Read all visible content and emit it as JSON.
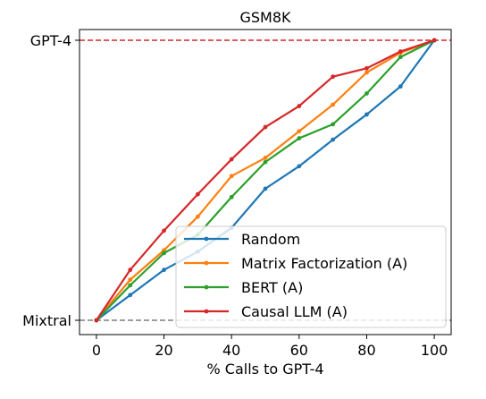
{
  "chart_data": {
    "type": "line",
    "title": "GSM8K",
    "xlabel": "% Calls to GPT-4",
    "ylabel": "",
    "xlim": [
      -5,
      105
    ],
    "ylim": [
      0,
      1
    ],
    "x_ticks": [
      "0",
      "20",
      "40",
      "60",
      "80",
      "100"
    ],
    "x_tick_values": [
      0,
      20,
      40,
      60,
      80,
      100
    ],
    "y_tick_labels": [
      "Mixtral",
      "GPT-4"
    ],
    "y_tick_values": [
      0,
      1
    ],
    "reference_lines": [
      {
        "y": 1,
        "color": "#d62728",
        "style": "dashed"
      },
      {
        "y": 0,
        "color": "#7f7f7f",
        "style": "dashed"
      }
    ],
    "grid": false,
    "legend_position": "lower-right",
    "x": [
      0,
      10,
      20,
      30,
      40,
      50,
      60,
      70,
      80,
      90,
      100
    ],
    "series": [
      {
        "name": "Random",
        "color": "#1f77b4",
        "values": [
          0.0,
          0.09,
          0.18,
          0.245,
          0.33,
          0.47,
          0.55,
          0.645,
          0.735,
          0.835,
          1.0
        ]
      },
      {
        "name": "Matrix Factorization (A)",
        "color": "#ff7f0e",
        "values": [
          0.0,
          0.145,
          0.25,
          0.37,
          0.515,
          0.58,
          0.675,
          0.77,
          0.885,
          0.955,
          1.0
        ]
      },
      {
        "name": "BERT (A)",
        "color": "#2ca02c",
        "values": [
          0.0,
          0.125,
          0.24,
          0.305,
          0.44,
          0.565,
          0.65,
          0.7,
          0.81,
          0.94,
          1.0
        ]
      },
      {
        "name": "Causal LLM (A)",
        "color": "#d62728",
        "values": [
          0.0,
          0.18,
          0.32,
          0.45,
          0.575,
          0.69,
          0.765,
          0.87,
          0.9,
          0.96,
          1.0
        ]
      }
    ]
  }
}
